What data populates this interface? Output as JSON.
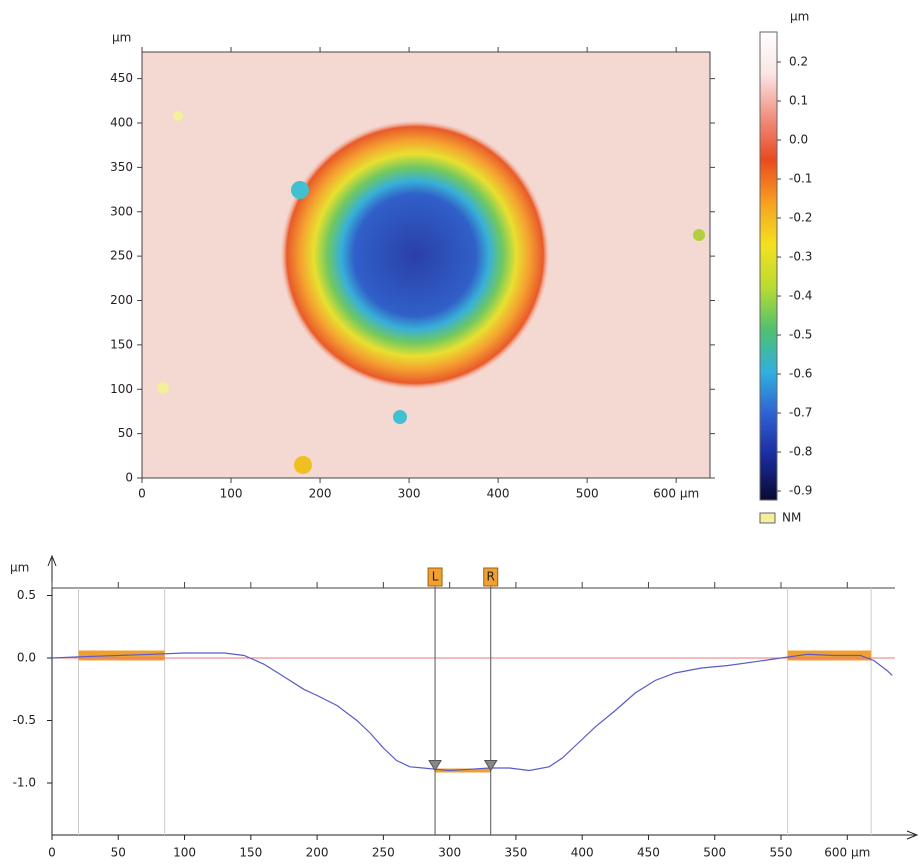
{
  "chart_data": [
    {
      "type": "heatmap",
      "ylabel": "µm",
      "xlim": [
        0,
        638
      ],
      "ylim": [
        0,
        480
      ],
      "xticks": [
        0,
        100,
        200,
        300,
        400,
        500,
        {
          "value": 600,
          "label": "600 µm"
        }
      ],
      "yticks": [
        0,
        50,
        100,
        150,
        200,
        250,
        300,
        350,
        400,
        450
      ],
      "colorbar": {
        "unit": "µm",
        "lim": [
          -0.923,
          0.277
        ],
        "ticks": [
          0.2,
          0.1,
          {
            "value": 0,
            "label": "0.0"
          },
          -0.1,
          -0.2,
          -0.3,
          -0.4,
          -0.5,
          -0.6,
          -0.7,
          -0.8,
          -0.9
        ],
        "colors": [
          "#0a0a30",
          "#1a2a9a",
          "#2f5fd0",
          "#2fb0e0",
          "#50c070",
          "#b8dc30",
          "#f5e020",
          "#f7a020",
          "#e84a20",
          "#f09080",
          "#fbe4e4",
          "#ffffff"
        ]
      },
      "legend": [
        {
          "name": "NM",
          "color": "#f3ef9a"
        }
      ]
    },
    {
      "type": "line",
      "ylabel": "µm",
      "xlim": [
        0,
        636
      ],
      "ylim": [
        -1.416,
        0.56
      ],
      "xticks": [
        0,
        50,
        100,
        150,
        200,
        250,
        300,
        350,
        400,
        450,
        500,
        550,
        {
          "value": 600,
          "label": "600 µm"
        }
      ],
      "yticks": [
        0.5,
        {
          "value": 0,
          "label": "0.0"
        },
        -0.5,
        {
          "value": -1,
          "label": "-1.0"
        }
      ],
      "color": "#5a5ac8",
      "zero_line_color": "#e87878",
      "x": [
        0,
        20,
        50,
        75,
        100,
        130,
        145,
        160,
        175,
        190,
        200,
        215,
        230,
        240,
        250,
        260,
        270,
        280,
        290,
        300,
        315,
        330,
        345,
        360,
        375,
        385,
        395,
        410,
        425,
        440,
        455,
        470,
        490,
        510,
        530,
        550,
        570,
        590,
        610,
        620,
        630,
        634
      ],
      "values": [
        0,
        0.01,
        0.02,
        0.03,
        0.04,
        0.04,
        0.02,
        -0.05,
        -0.15,
        -0.25,
        -0.3,
        -0.38,
        -0.5,
        -0.6,
        -0.72,
        -0.82,
        -0.87,
        -0.88,
        -0.89,
        -0.9,
        -0.89,
        -0.88,
        -0.88,
        -0.9,
        -0.87,
        -0.8,
        -0.7,
        -0.55,
        -0.42,
        -0.28,
        -0.18,
        -0.12,
        -0.08,
        -0.06,
        -0.03,
        0,
        0.03,
        0.02,
        0.02,
        -0.02,
        -0.1,
        -0.14
      ],
      "reference_zones": [
        {
          "x": [
            20,
            85
          ],
          "level": 0.02
        },
        {
          "x": [
            555,
            618
          ],
          "level": 0.02
        }
      ],
      "zone_color": "#f0a030",
      "cursors": [
        {
          "label": "L",
          "x": 289
        },
        {
          "label": "R",
          "x": 331
        }
      ],
      "cursor_level": -0.9
    }
  ]
}
